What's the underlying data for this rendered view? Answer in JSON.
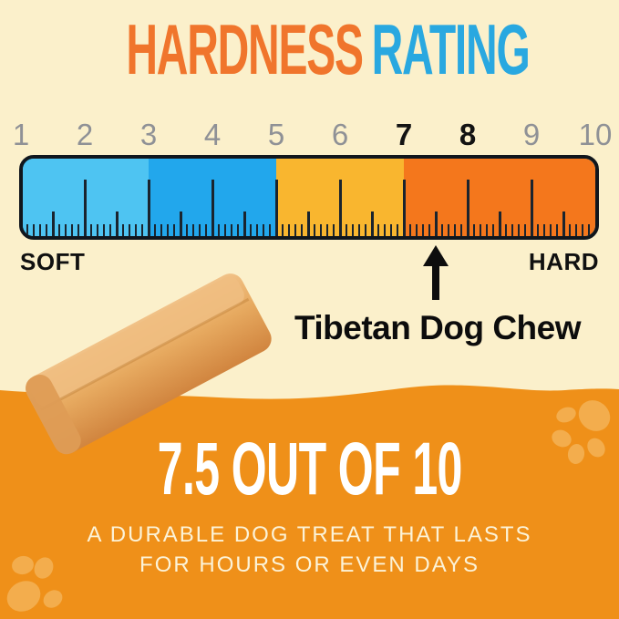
{
  "title": {
    "hardness": "HARDNESS",
    "rating": "RATING"
  },
  "ruler": {
    "soft_label": "SOFT",
    "hard_label": "HARD"
  },
  "pointer": {
    "value": 7.5,
    "label": "Tibetan Dog Chew"
  },
  "score": {
    "headline": "7.5 OUT OF 10",
    "line1": "A DURABLE DOG TREAT THAT LASTS",
    "line2": "FOR HOURS OR EVEN DAYS"
  },
  "colors": {
    "background_cream": "#FBF0CB",
    "background_orange": "#EF9019",
    "paw_print": "#F3AD4D",
    "title_hardness": "#F0752C",
    "title_rating": "#29A8E0",
    "ruler_border": "#10161D",
    "tick": "#1A242E",
    "number_gray": "#8F9196",
    "number_highlight": "#131313",
    "label_black": "#0D0D0D",
    "score_white": "#FFFFFF",
    "subtitle_cream": "#FCF3D8",
    "chew_light": "#F1C288",
    "chew_mid": "#E7AA60",
    "chew_dark": "#D1853F"
  },
  "chart_data": {
    "type": "bar",
    "subtype": "linear-gauge",
    "title": "HARDNESS RATING",
    "axis": {
      "min": 1,
      "max": 10,
      "ticks": [
        1,
        2,
        3,
        4,
        5,
        6,
        7,
        8,
        9,
        10
      ],
      "medium_tick_step": 0.5,
      "minor_tick_step": 0.1
    },
    "highlighted_ticks": [
      7,
      8
    ],
    "segments": [
      {
        "range": [
          1,
          3
        ],
        "color": "#4EC4F2"
      },
      {
        "range": [
          3,
          5
        ],
        "color": "#22A7EC"
      },
      {
        "range": [
          5,
          7
        ],
        "color": "#F9B62F"
      },
      {
        "range": [
          7,
          10
        ],
        "color": "#F4771C"
      }
    ],
    "endpoints": {
      "left": "SOFT",
      "right": "HARD"
    },
    "pointer": {
      "value": 7.5,
      "label": "Tibetan Dog Chew"
    },
    "score_text": "7.5 OUT OF 10",
    "description": "A DURABLE DOG TREAT THAT LASTS FOR HOURS OR EVEN DAYS"
  }
}
